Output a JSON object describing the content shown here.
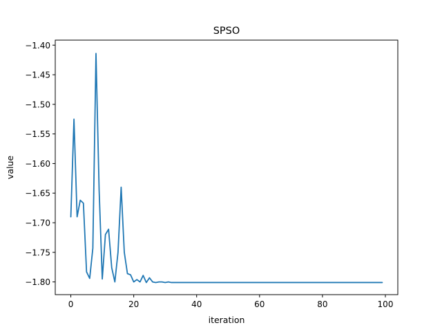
{
  "chart_data": {
    "type": "line",
    "title": "SPSO",
    "xlabel": "iteration",
    "ylabel": "value",
    "xlim": [
      -4.95,
      103.95
    ],
    "ylim": [
      -1.8215,
      -1.3915
    ],
    "x_ticks": [
      0,
      20,
      40,
      60,
      80,
      100
    ],
    "y_ticks": [
      -1.4,
      -1.45,
      -1.5,
      -1.55,
      -1.6,
      -1.65,
      -1.7,
      -1.75,
      -1.8
    ],
    "x_tick_labels": [
      "0",
      "20",
      "40",
      "60",
      "80",
      "100"
    ],
    "y_tick_labels": [
      "−1.40",
      "−1.45",
      "−1.50",
      "−1.55",
      "−1.60",
      "−1.65",
      "−1.70",
      "−1.75",
      "−1.80"
    ],
    "grid": false,
    "legend": "none",
    "series_color": "#1f77b4",
    "x": [
      0,
      1,
      2,
      3,
      4,
      5,
      6,
      7,
      8,
      9,
      10,
      11,
      12,
      13,
      14,
      15,
      16,
      17,
      18,
      19,
      20,
      21,
      22,
      23,
      24,
      25,
      26,
      27,
      28,
      29,
      30,
      31,
      32,
      33,
      34,
      35,
      36,
      37,
      38,
      39,
      40,
      41,
      42,
      43,
      44,
      45,
      46,
      47,
      48,
      49,
      50,
      51,
      52,
      53,
      54,
      55,
      56,
      57,
      58,
      59,
      60,
      61,
      62,
      63,
      64,
      65,
      66,
      67,
      68,
      69,
      70,
      71,
      72,
      73,
      74,
      75,
      76,
      77,
      78,
      79,
      80,
      81,
      82,
      83,
      84,
      85,
      86,
      87,
      88,
      89,
      90,
      91,
      92,
      93,
      94,
      95,
      96,
      97,
      98,
      99
    ],
    "y": [
      -1.69,
      -1.525,
      -1.69,
      -1.662,
      -1.667,
      -1.783,
      -1.794,
      -1.743,
      -1.414,
      -1.645,
      -1.795,
      -1.72,
      -1.711,
      -1.776,
      -1.8,
      -1.75,
      -1.64,
      -1.75,
      -1.786,
      -1.788,
      -1.8,
      -1.796,
      -1.8,
      -1.789,
      -1.801,
      -1.793,
      -1.8,
      -1.801,
      -1.8,
      -1.8,
      -1.801,
      -1.8,
      -1.801,
      -1.801,
      -1.801,
      -1.801,
      -1.801,
      -1.801,
      -1.801,
      -1.801,
      -1.801,
      -1.801,
      -1.801,
      -1.801,
      -1.801,
      -1.801,
      -1.801,
      -1.801,
      -1.801,
      -1.801,
      -1.801,
      -1.801,
      -1.801,
      -1.801,
      -1.801,
      -1.801,
      -1.801,
      -1.801,
      -1.801,
      -1.801,
      -1.801,
      -1.801,
      -1.801,
      -1.801,
      -1.801,
      -1.801,
      -1.801,
      -1.801,
      -1.801,
      -1.801,
      -1.801,
      -1.801,
      -1.801,
      -1.801,
      -1.801,
      -1.801,
      -1.801,
      -1.801,
      -1.801,
      -1.801,
      -1.801,
      -1.801,
      -1.801,
      -1.801,
      -1.801,
      -1.801,
      -1.801,
      -1.801,
      -1.801,
      -1.801,
      -1.801,
      -1.801,
      -1.801,
      -1.801,
      -1.801,
      -1.801,
      -1.801,
      -1.801,
      -1.801,
      -1.801
    ]
  }
}
